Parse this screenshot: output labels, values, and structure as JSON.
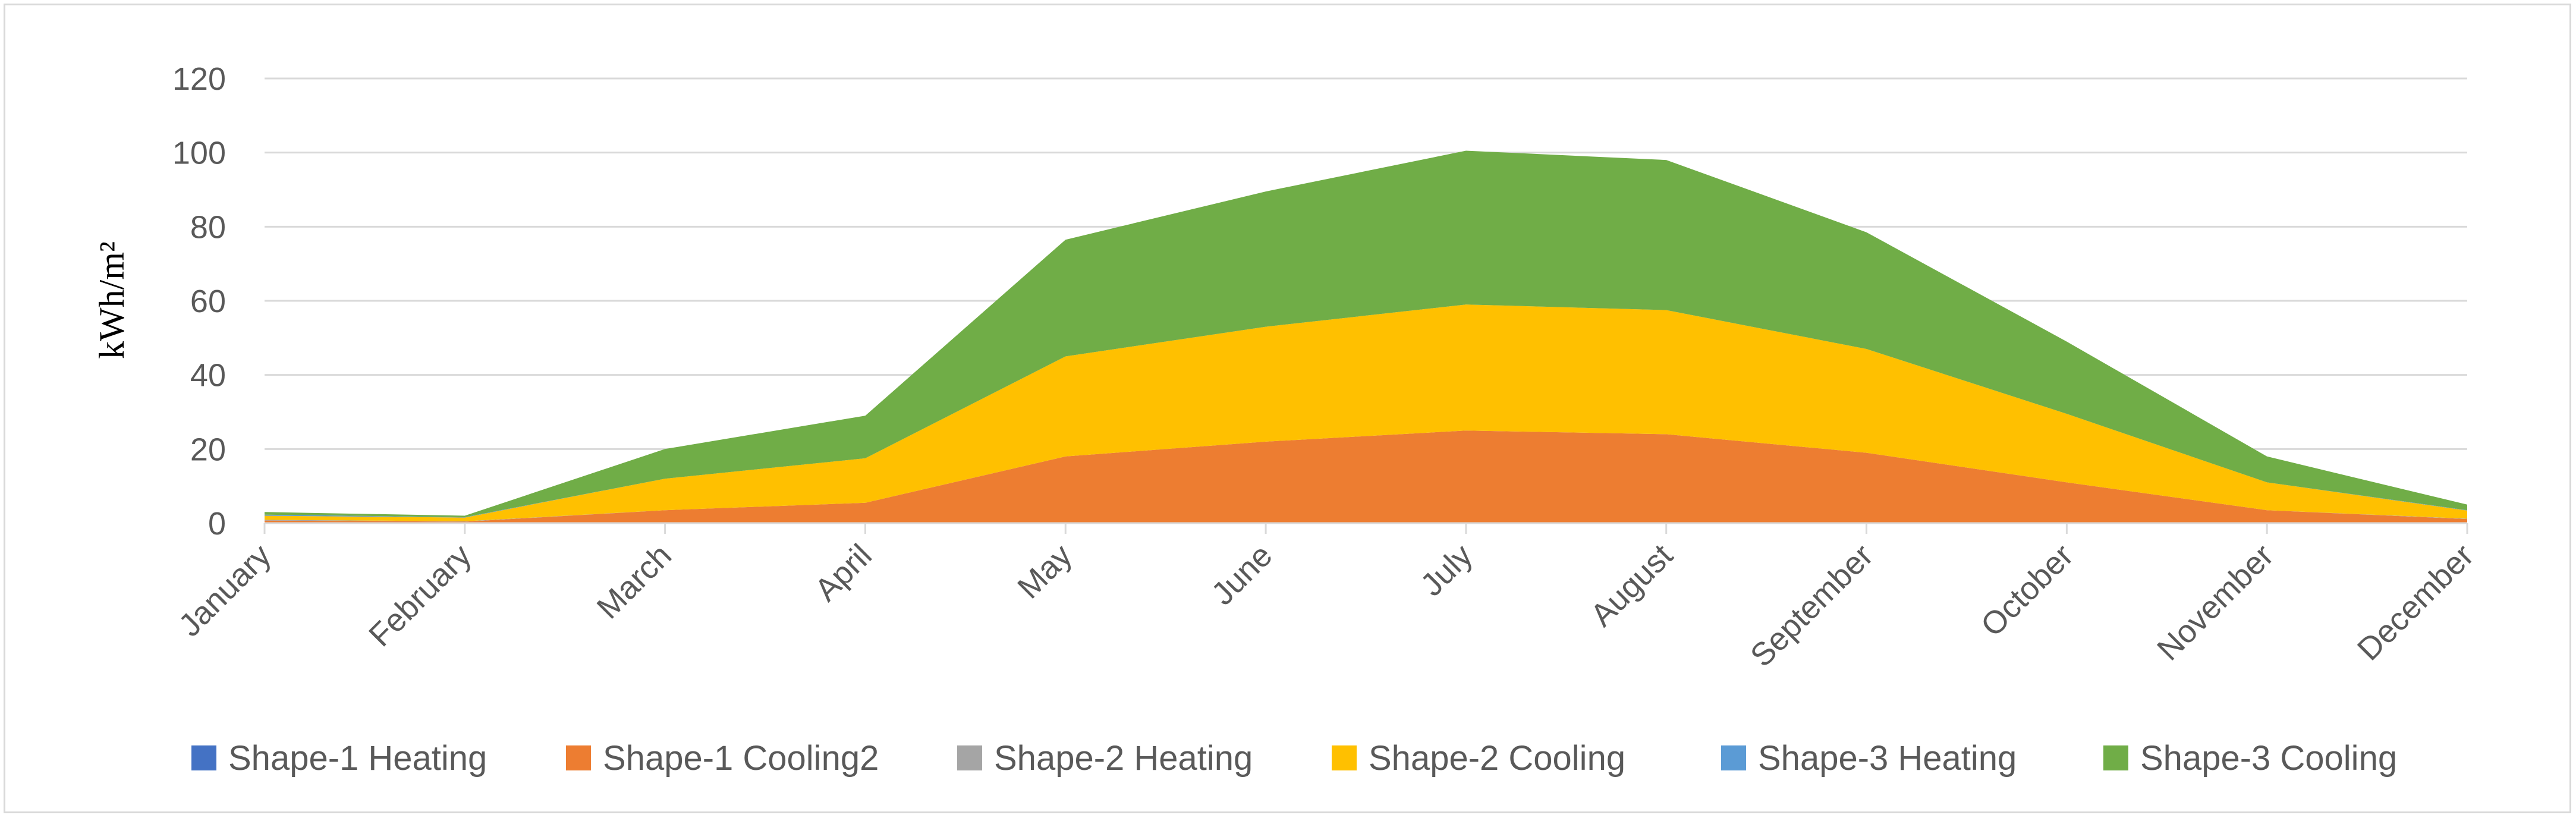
{
  "chart_data": {
    "type": "area",
    "stacked": true,
    "title": "",
    "xlabel": "",
    "ylabel": "kWh/m²",
    "ylim": [
      0,
      120
    ],
    "yticks": [
      0,
      20,
      40,
      60,
      80,
      100,
      120
    ],
    "grid": true,
    "legend_position": "bottom",
    "categories": [
      "January",
      "February",
      "March",
      "April",
      "May",
      "June",
      "July",
      "August",
      "September",
      "October",
      "November",
      "December"
    ],
    "series": [
      {
        "name": "Shape-1 Heating",
        "color": "#4472c4",
        "values": [
          0.2,
          0.1,
          0,
          0,
          0,
          0,
          0,
          0,
          0,
          0,
          0,
          0.1
        ]
      },
      {
        "name": "Shape-1 Cooling2",
        "color": "#ed7d31",
        "values": [
          0.5,
          0.3,
          3.5,
          5.5,
          18,
          22,
          25,
          24,
          19,
          11,
          3.5,
          1
        ]
      },
      {
        "name": "Shape-2 Heating",
        "color": "#a5a5a5",
        "values": [
          0.2,
          0.1,
          0,
          0,
          0,
          0,
          0,
          0,
          0,
          0,
          0,
          0.1
        ]
      },
      {
        "name": "Shape-2 Cooling",
        "color": "#ffc000",
        "values": [
          1.1,
          1.0,
          8.5,
          12,
          27,
          31,
          34,
          33.5,
          28,
          18.5,
          7.5,
          2.2
        ]
      },
      {
        "name": "Shape-3 Heating",
        "color": "#5b9bd5",
        "values": [
          0.3,
          0.1,
          0,
          0,
          0,
          0,
          0,
          0,
          0,
          0,
          0,
          0.1
        ]
      },
      {
        "name": "Shape-3 Cooling",
        "color": "#70ad47",
        "values": [
          0.7,
          0.4,
          8,
          11.5,
          31.5,
          36.5,
          41.5,
          40.5,
          31.5,
          19.5,
          7,
          1.5
        ]
      }
    ]
  }
}
